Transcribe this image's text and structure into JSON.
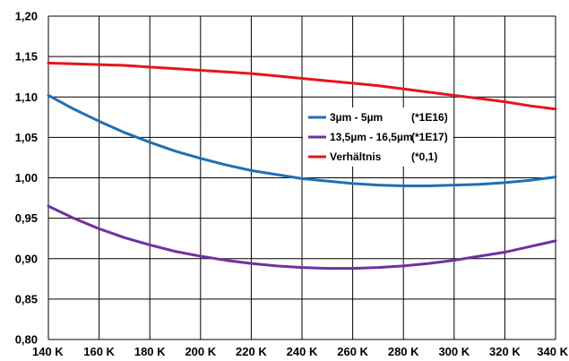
{
  "chart_data": {
    "type": "line",
    "title": "",
    "xlabel": "",
    "ylabel": "",
    "xlim": [
      140,
      340
    ],
    "ylim": [
      0.8,
      1.2
    ],
    "grid": true,
    "legend_position": "center-right",
    "x_ticks": [
      "140 K",
      "160 K",
      "180 K",
      "200 K",
      "220 K",
      "240 K",
      "260 K",
      "280 K",
      "300 K",
      "320 K",
      "340 K"
    ],
    "y_ticks": [
      "0,80",
      "0,85",
      "0,90",
      "0,95",
      "1,00",
      "1,05",
      "1,10",
      "1,15",
      "1,20"
    ],
    "x": [
      140,
      150,
      160,
      170,
      180,
      190,
      200,
      210,
      220,
      230,
      240,
      250,
      260,
      270,
      280,
      290,
      300,
      310,
      320,
      330,
      340
    ],
    "series": [
      {
        "name": "3µm - 5µm",
        "factor": "(*1E16)",
        "color": "#1f6fb5",
        "values": [
          1.102,
          1.085,
          1.07,
          1.056,
          1.044,
          1.033,
          1.024,
          1.016,
          1.009,
          1.004,
          0.999,
          0.996,
          0.993,
          0.991,
          0.99,
          0.99,
          0.991,
          0.992,
          0.994,
          0.997,
          1.001
        ]
      },
      {
        "name": "13,5µm - 16,5µm",
        "factor": "(*1E17)",
        "color": "#7030a0",
        "values": [
          0.965,
          0.95,
          0.937,
          0.926,
          0.917,
          0.909,
          0.903,
          0.898,
          0.894,
          0.891,
          0.889,
          0.888,
          0.888,
          0.889,
          0.891,
          0.894,
          0.898,
          0.903,
          0.908,
          0.915,
          0.922
        ]
      },
      {
        "name": "Verhältnis",
        "factor": "(*0,1)",
        "color": "#e8141b",
        "values": [
          1.142,
          1.141,
          1.14,
          1.139,
          1.137,
          1.135,
          1.133,
          1.131,
          1.129,
          1.126,
          1.123,
          1.12,
          1.117,
          1.114,
          1.11,
          1.106,
          1.102,
          1.098,
          1.094,
          1.089,
          1.085
        ]
      }
    ]
  }
}
